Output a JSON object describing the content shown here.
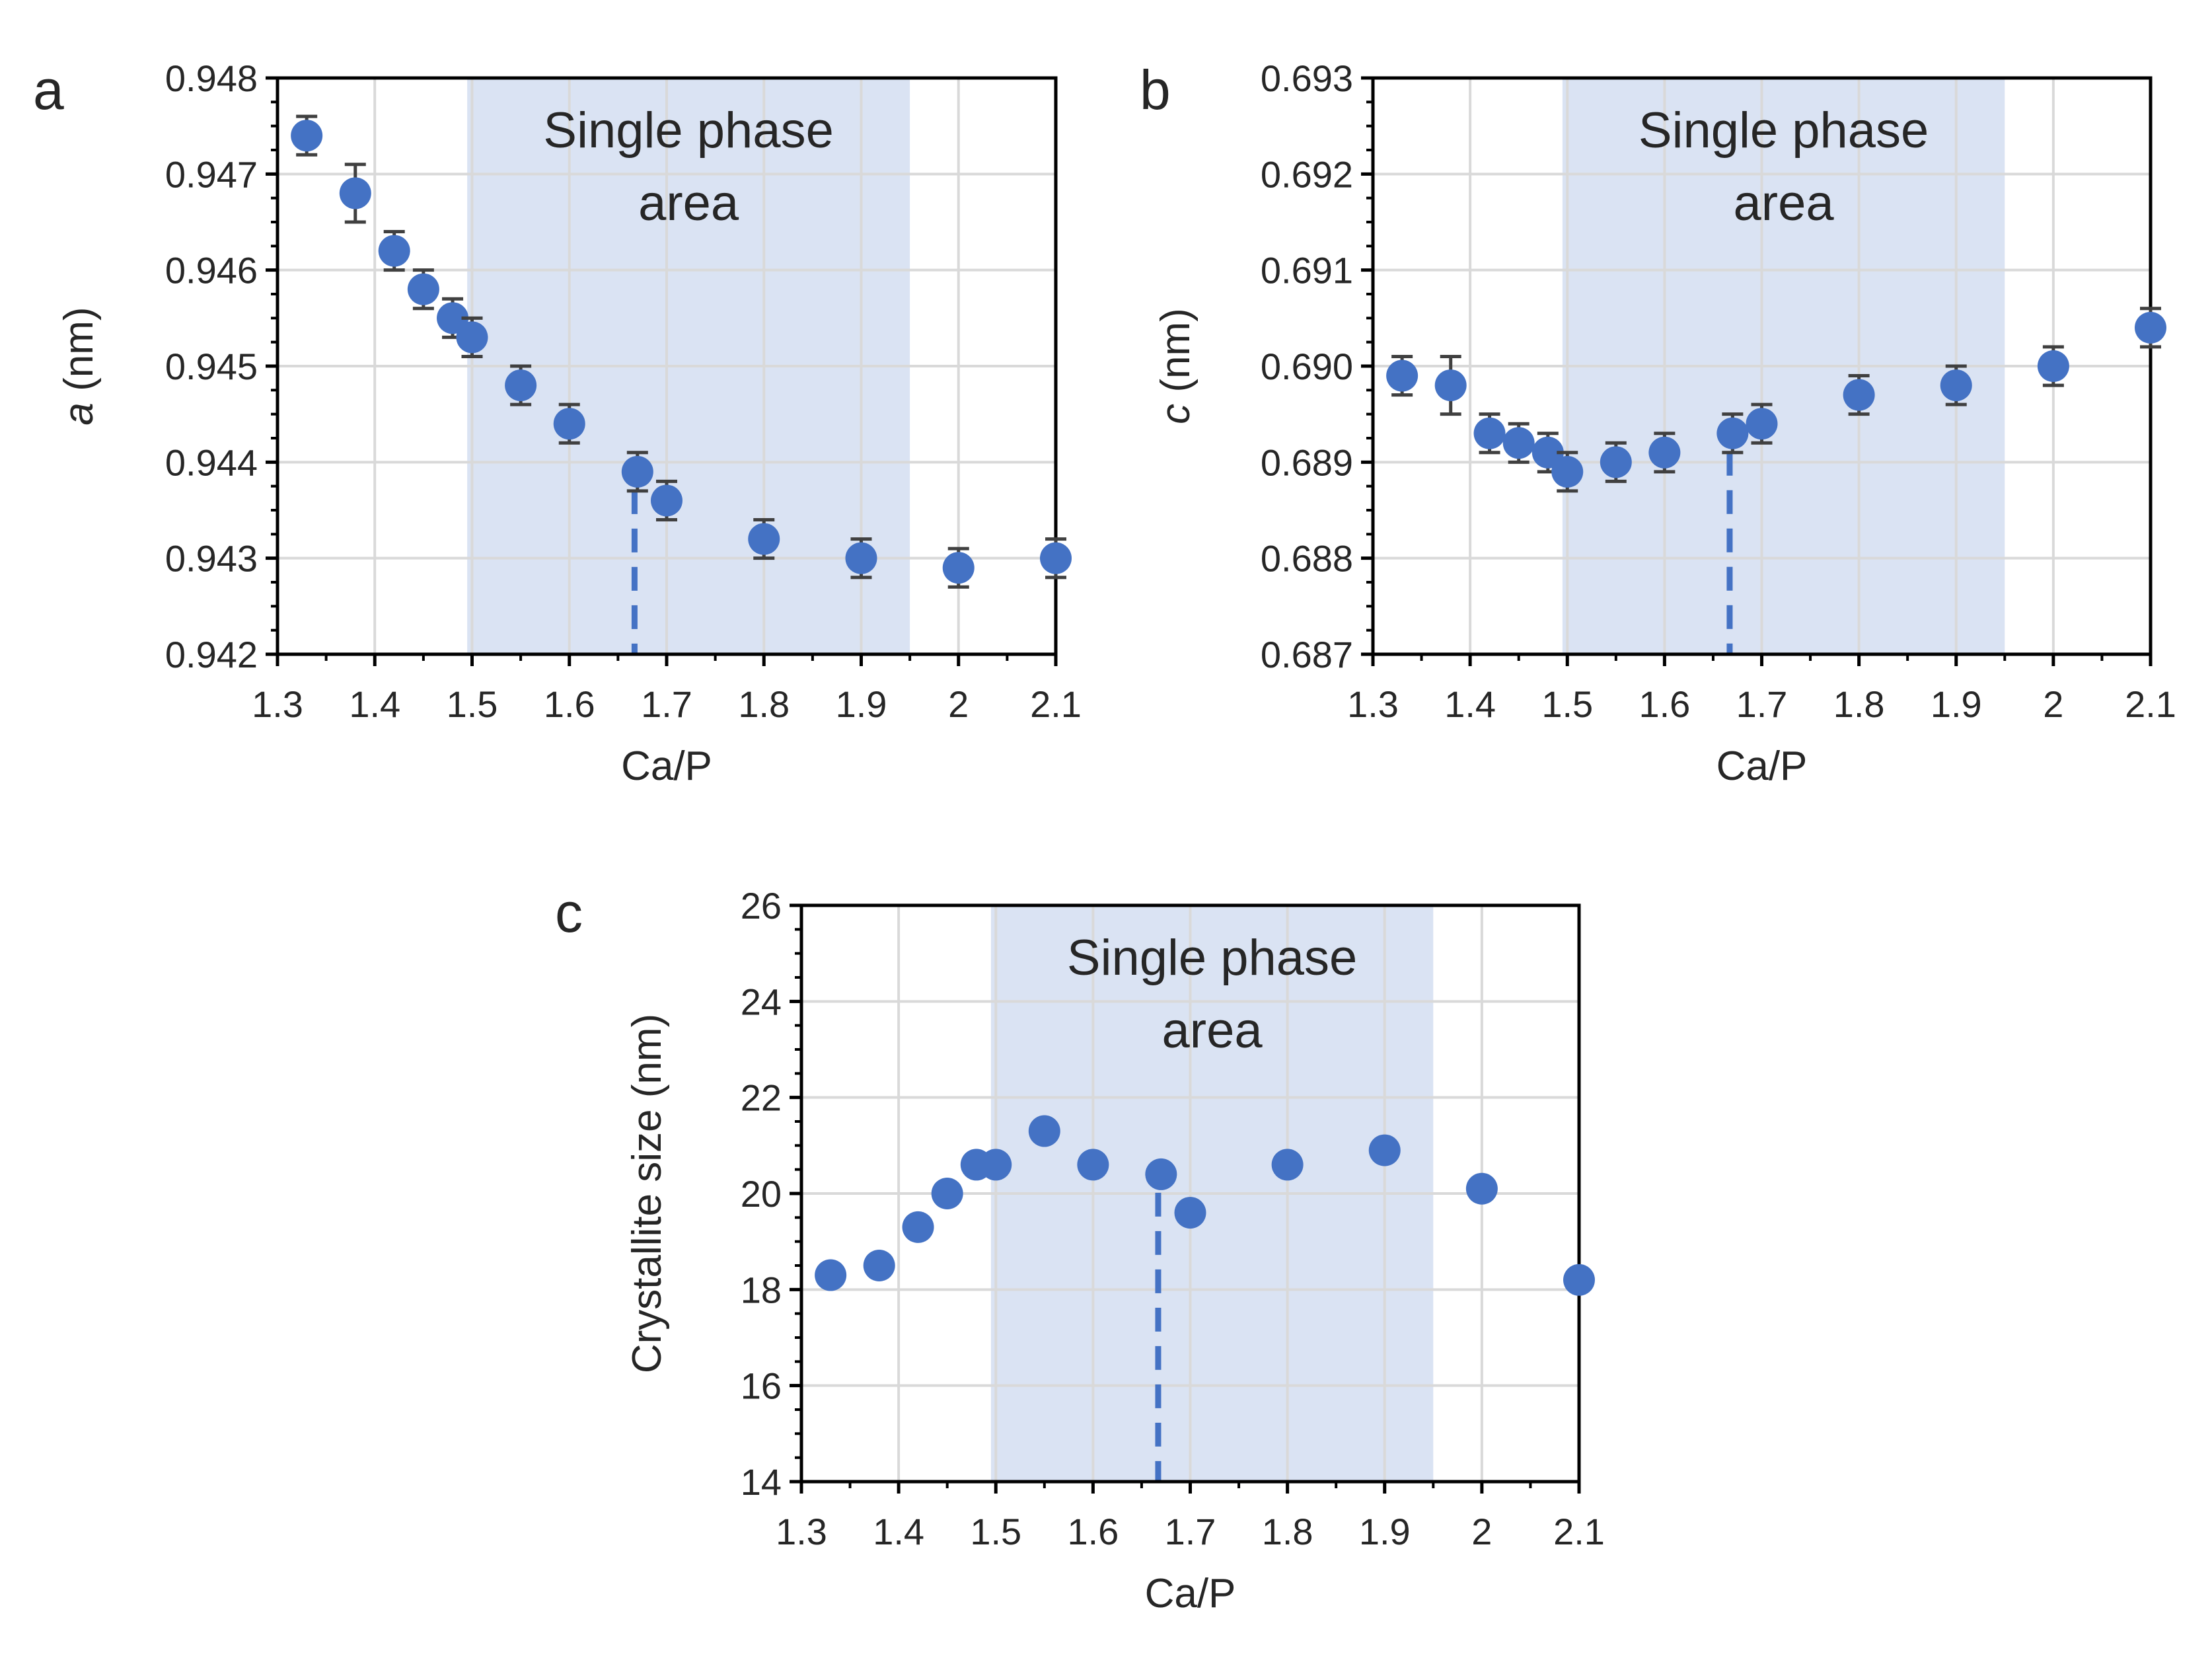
{
  "chart_data": [
    {
      "panel": "a",
      "type": "scatter",
      "xlabel": "Ca/P",
      "ylabel_italic": "a",
      "ylabel_rest": " (nm)",
      "xlim": [
        1.3,
        2.1
      ],
      "ylim": [
        0.942,
        0.948
      ],
      "xticks": [
        "1.3",
        "1.4",
        "1.5",
        "1.6",
        "1.7",
        "1.8",
        "1.9",
        "2",
        "2.1"
      ],
      "yticks": [
        "0.942",
        "0.943",
        "0.944",
        "0.945",
        "0.946",
        "0.947",
        "0.948"
      ],
      "grid": true,
      "shaded_region": {
        "x": [
          1.495,
          1.95
        ],
        "label_line1": "Single phase",
        "label_line2": "area"
      },
      "marker_line_x": 1.667,
      "points": [
        {
          "x": 1.33,
          "y": 0.9474,
          "err": 0.0002
        },
        {
          "x": 1.38,
          "y": 0.9468,
          "err": 0.0003
        },
        {
          "x": 1.42,
          "y": 0.9462,
          "err": 0.0002
        },
        {
          "x": 1.45,
          "y": 0.9458,
          "err": 0.0002
        },
        {
          "x": 1.48,
          "y": 0.9455,
          "err": 0.0002
        },
        {
          "x": 1.5,
          "y": 0.9453,
          "err": 0.0002
        },
        {
          "x": 1.55,
          "y": 0.9448,
          "err": 0.0002
        },
        {
          "x": 1.6,
          "y": 0.9444,
          "err": 0.0002
        },
        {
          "x": 1.67,
          "y": 0.9439,
          "err": 0.0002
        },
        {
          "x": 1.7,
          "y": 0.9436,
          "err": 0.0002
        },
        {
          "x": 1.8,
          "y": 0.9432,
          "err": 0.0002
        },
        {
          "x": 1.9,
          "y": 0.943,
          "err": 0.0002
        },
        {
          "x": 2.0,
          "y": 0.9429,
          "err": 0.0002
        },
        {
          "x": 2.1,
          "y": 0.943,
          "err": 0.0002
        }
      ]
    },
    {
      "panel": "b",
      "type": "scatter",
      "xlabel": "Ca/P",
      "ylabel_italic": "c",
      "ylabel_rest": " (nm)",
      "xlim": [
        1.3,
        2.1
      ],
      "ylim": [
        0.687,
        0.693
      ],
      "xticks": [
        "1.3",
        "1.4",
        "1.5",
        "1.6",
        "1.7",
        "1.8",
        "1.9",
        "2",
        "2.1"
      ],
      "yticks": [
        "0.687",
        "0.688",
        "0.689",
        "0.690",
        "0.691",
        "0.692",
        "0.693"
      ],
      "grid": true,
      "shaded_region": {
        "x": [
          1.495,
          1.95
        ],
        "label_line1": "Single phase",
        "label_line2": "area"
      },
      "marker_line_x": 1.667,
      "points": [
        {
          "x": 1.33,
          "y": 0.6899,
          "err": 0.0002
        },
        {
          "x": 1.38,
          "y": 0.6898,
          "err": 0.0003
        },
        {
          "x": 1.42,
          "y": 0.6893,
          "err": 0.0002
        },
        {
          "x": 1.45,
          "y": 0.6892,
          "err": 0.0002
        },
        {
          "x": 1.48,
          "y": 0.6891,
          "err": 0.0002
        },
        {
          "x": 1.5,
          "y": 0.6889,
          "err": 0.0002
        },
        {
          "x": 1.55,
          "y": 0.689,
          "err": 0.0002
        },
        {
          "x": 1.6,
          "y": 0.6891,
          "err": 0.0002
        },
        {
          "x": 1.67,
          "y": 0.6893,
          "err": 0.0002
        },
        {
          "x": 1.7,
          "y": 0.6894,
          "err": 0.0002
        },
        {
          "x": 1.8,
          "y": 0.6897,
          "err": 0.0002
        },
        {
          "x": 1.9,
          "y": 0.6898,
          "err": 0.0002
        },
        {
          "x": 2.0,
          "y": 0.69,
          "err": 0.0002
        },
        {
          "x": 2.1,
          "y": 0.6904,
          "err": 0.0002
        }
      ]
    },
    {
      "panel": "c",
      "type": "scatter",
      "xlabel": "Ca/P",
      "ylabel_italic": "",
      "ylabel_rest": "Crystallite size (nm)",
      "xlim": [
        1.3,
        2.1
      ],
      "ylim": [
        14,
        26
      ],
      "xticks": [
        "1.3",
        "1.4",
        "1.5",
        "1.6",
        "1.7",
        "1.8",
        "1.9",
        "2",
        "2.1"
      ],
      "yticks": [
        "14",
        "16",
        "18",
        "20",
        "22",
        "24",
        "26"
      ],
      "grid": true,
      "shaded_region": {
        "x": [
          1.495,
          1.95
        ],
        "label_line1": "Single phase",
        "label_line2": "area"
      },
      "marker_line_x": 1.667,
      "points": [
        {
          "x": 1.33,
          "y": 18.3,
          "err": 0.2
        },
        {
          "x": 1.38,
          "y": 18.5,
          "err": 0.2
        },
        {
          "x": 1.42,
          "y": 19.3,
          "err": 0.2
        },
        {
          "x": 1.45,
          "y": 20.0,
          "err": 0.2
        },
        {
          "x": 1.48,
          "y": 20.6,
          "err": 0.2
        },
        {
          "x": 1.5,
          "y": 20.6,
          "err": 0.2
        },
        {
          "x": 1.55,
          "y": 21.3,
          "err": 0.2
        },
        {
          "x": 1.6,
          "y": 20.6,
          "err": 0.2
        },
        {
          "x": 1.67,
          "y": 20.4,
          "err": 0.2
        },
        {
          "x": 1.7,
          "y": 19.6,
          "err": 0.2
        },
        {
          "x": 1.8,
          "y": 20.6,
          "err": 0.2
        },
        {
          "x": 1.9,
          "y": 20.9,
          "err": 0.2
        },
        {
          "x": 2.0,
          "y": 20.1,
          "err": 0.2
        },
        {
          "x": 2.1,
          "y": 18.2,
          "err": 0.1
        }
      ]
    }
  ],
  "colors": {
    "marker": "#4472c4",
    "shade": "#dae3f3",
    "grid": "#d9d9d9",
    "axis": "#000000",
    "errorbar": "#404040",
    "text": "#262626"
  }
}
